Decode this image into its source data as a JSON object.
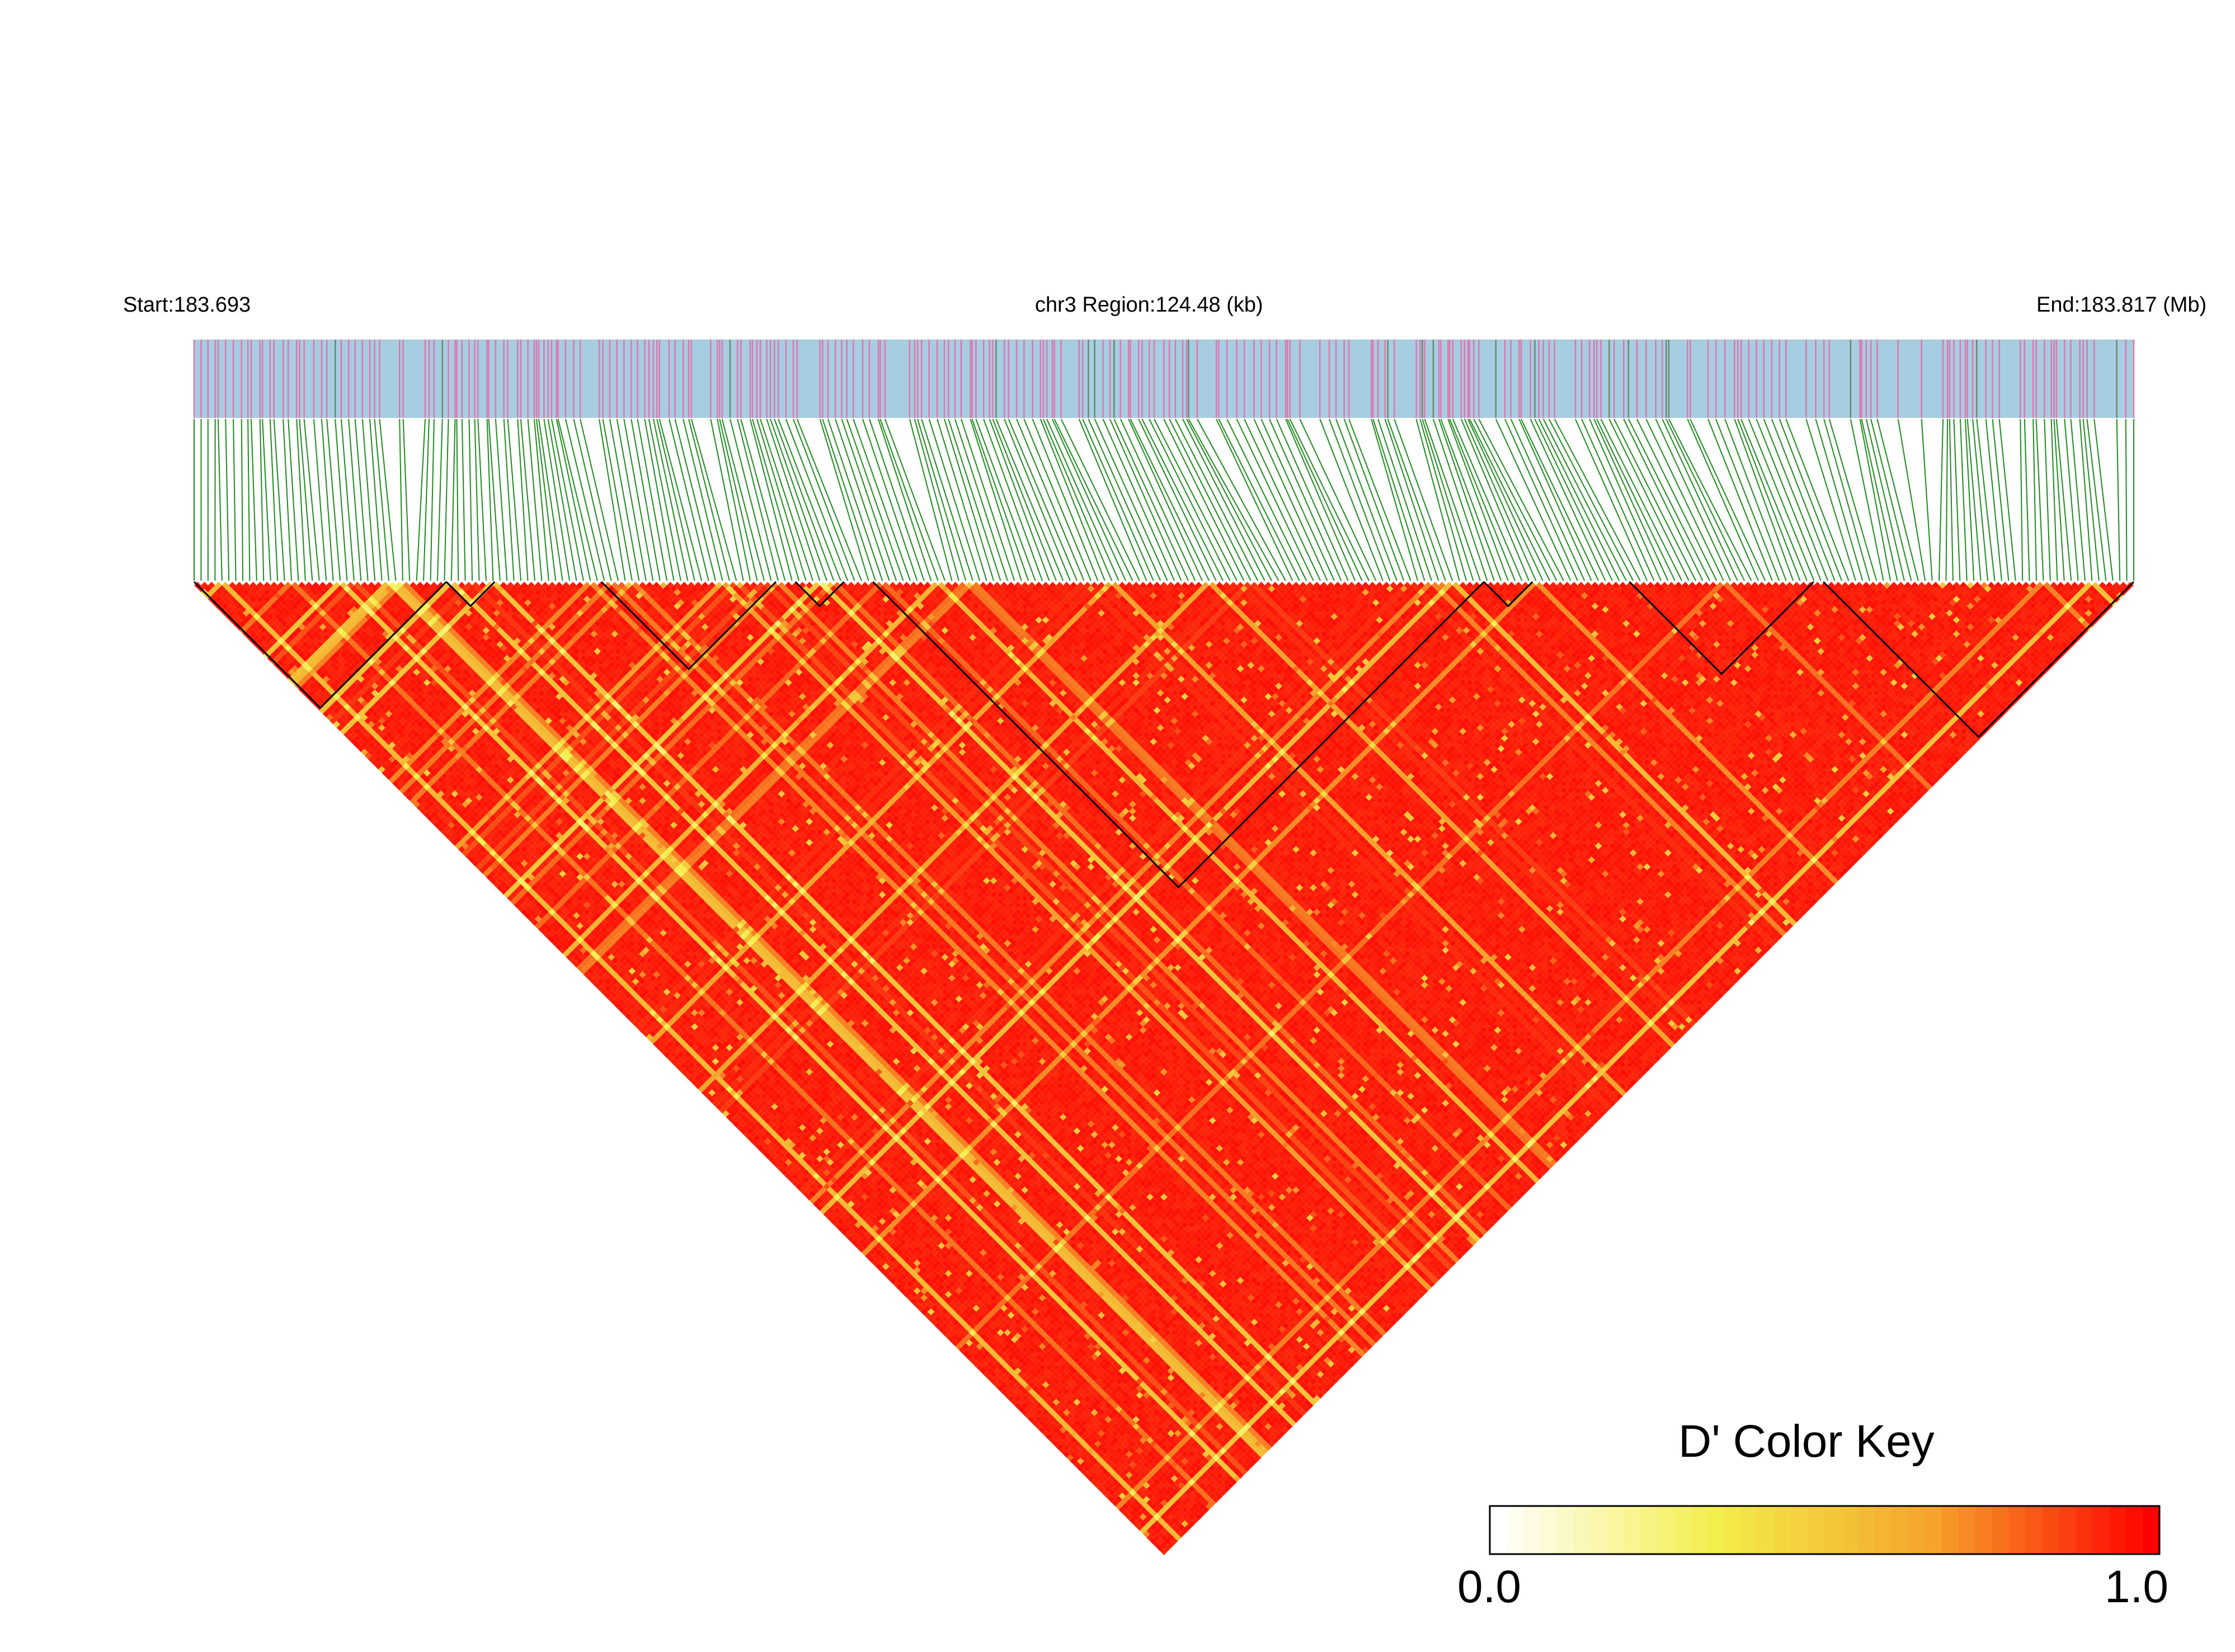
{
  "chart_data": {
    "type": "heatmap",
    "subtype": "LD triangle (linkage disequilibrium, D')",
    "chromosome": "chr3",
    "start_label": "Start:183.693",
    "region_label": "chr3 Region:124.48 (kb)",
    "end_label": "End:183.817 (Mb)",
    "region_start_mb": 183.693,
    "region_end_mb": 183.817,
    "region_length_kb": 124.48,
    "n_snps_approx": 280,
    "metric": "D'",
    "color_key": {
      "title": "D' Color Key",
      "min_label": "0.0",
      "max_label": "1.0",
      "min": 0.0,
      "max": 1.0,
      "colors": [
        "#ffffff",
        "#f3ee4a",
        "#f5a32a",
        "#ff0000"
      ]
    },
    "overall_pattern": "predominantly high D' (red) across the region; lower D' (yellow/white streaks) concentrated in the left half of the triangle",
    "haplotype_blocks_fraction": [
      [
        0.0,
        0.13
      ],
      [
        0.13,
        0.155
      ],
      [
        0.21,
        0.3
      ],
      [
        0.31,
        0.335
      ],
      [
        0.35,
        0.665
      ],
      [
        0.665,
        0.69
      ],
      [
        0.74,
        0.835
      ],
      [
        0.84,
        1.0
      ]
    ],
    "colors": {
      "gene_track": "#a6cde2",
      "snp_ticks": "#de77ae",
      "connector_lines": "#1f8a1f",
      "block_outline": "#000000",
      "ld_high": "#ff0000"
    }
  }
}
